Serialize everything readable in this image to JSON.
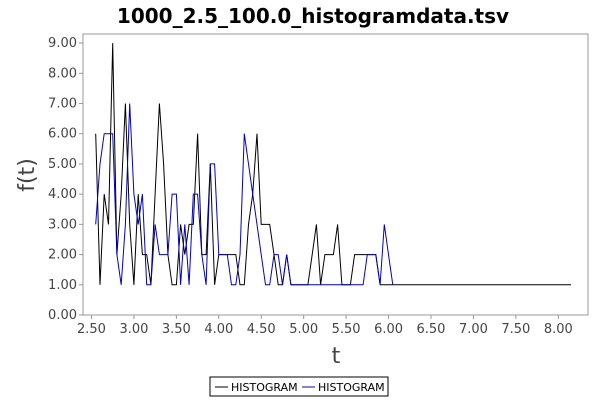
{
  "chart_data": {
    "type": "line",
    "title": "1000_2.5_100.0_histogramdata.tsv",
    "xlabel": "t",
    "ylabel": "f(t)",
    "xlim": [
      2.4,
      8.35
    ],
    "ylim": [
      0,
      9.3
    ],
    "xticks": [
      "2.50",
      "3.00",
      "3.50",
      "4.00",
      "4.50",
      "5.00",
      "5.50",
      "6.00",
      "6.50",
      "7.00",
      "7.50",
      "8.00"
    ],
    "yticks": [
      "0.00",
      "1.00",
      "2.00",
      "3.00",
      "4.00",
      "5.00",
      "6.00",
      "7.00",
      "8.00",
      "9.00"
    ],
    "legend_position": "bottom-center",
    "grid": false,
    "series": [
      {
        "name": "HISTOGRAM",
        "color": "#000000",
        "x": [
          2.55,
          2.6,
          2.65,
          2.7,
          2.75,
          2.8,
          2.85,
          2.9,
          2.95,
          3.0,
          3.05,
          3.1,
          3.15,
          3.2,
          3.25,
          3.3,
          3.35,
          3.4,
          3.45,
          3.5,
          3.55,
          3.6,
          3.65,
          3.7,
          3.75,
          3.8,
          3.85,
          3.9,
          3.95,
          4.0,
          4.05,
          4.1,
          4.15,
          4.2,
          4.25,
          4.3,
          4.35,
          4.4,
          4.45,
          4.5,
          4.55,
          4.6,
          4.65,
          4.7,
          4.75,
          4.8,
          4.85,
          4.9,
          4.95,
          5.0,
          5.05,
          5.1,
          5.15,
          5.2,
          5.25,
          5.3,
          5.35,
          5.4,
          5.45,
          5.5,
          5.55,
          5.6,
          5.65,
          5.7,
          5.75,
          5.8,
          5.85,
          5.9,
          5.95,
          6.0,
          6.05,
          6.1,
          6.15,
          6.2,
          8.15
        ],
        "values": [
          6,
          1,
          4,
          3,
          9,
          2,
          4,
          7,
          3,
          1,
          4,
          2,
          2,
          1,
          4,
          7,
          5,
          2,
          1,
          1,
          3,
          2,
          3,
          3,
          6,
          2,
          2,
          5,
          1,
          2,
          2,
          2,
          2,
          2,
          1,
          1,
          3,
          4,
          6,
          3,
          3,
          3,
          2,
          1,
          1,
          2,
          1,
          1,
          1,
          1,
          1,
          2,
          3,
          1,
          2,
          2,
          2,
          3,
          1,
          1,
          1,
          2,
          2,
          2,
          2,
          2,
          2,
          1,
          1,
          1,
          1,
          1,
          1,
          1,
          1
        ]
      },
      {
        "name": "HISTOGRAM",
        "color": "#0000cc",
        "x": [
          2.55,
          2.6,
          2.65,
          2.7,
          2.75,
          2.8,
          2.85,
          2.9,
          2.95,
          3.0,
          3.05,
          3.1,
          3.15,
          3.2,
          3.25,
          3.3,
          3.35,
          3.4,
          3.45,
          3.5,
          3.55,
          3.6,
          3.65,
          3.7,
          3.75,
          3.8,
          3.85,
          3.9,
          3.95,
          4.0,
          4.05,
          4.1,
          4.15,
          4.2,
          4.25,
          4.3,
          4.35,
          4.4,
          4.45,
          4.5,
          4.55,
          4.6,
          4.65,
          4.7,
          4.75,
          4.8,
          4.85,
          4.9,
          4.95,
          5.0,
          5.05,
          5.1,
          5.15,
          5.2,
          5.25,
          5.3,
          5.35,
          5.4,
          5.45,
          5.5,
          5.55,
          5.6,
          5.65,
          5.7,
          5.75,
          5.8,
          5.85,
          5.9,
          5.95,
          6.0,
          6.05
        ],
        "values": [
          3,
          5,
          6,
          6,
          6,
          2,
          1,
          3,
          7,
          4,
          3,
          4,
          1,
          1,
          3,
          2,
          2,
          2,
          4,
          4,
          1,
          3,
          1,
          4,
          4,
          2,
          1,
          5,
          5,
          2,
          2,
          2,
          1,
          1,
          2,
          6,
          5,
          4,
          3,
          2,
          1,
          1,
          2,
          2,
          1,
          2,
          1,
          1,
          1,
          1,
          1,
          1,
          1,
          1,
          1,
          1,
          1,
          1,
          1,
          1,
          1,
          1,
          1,
          1,
          2,
          2,
          2,
          1,
          3,
          2,
          1
        ]
      }
    ]
  }
}
